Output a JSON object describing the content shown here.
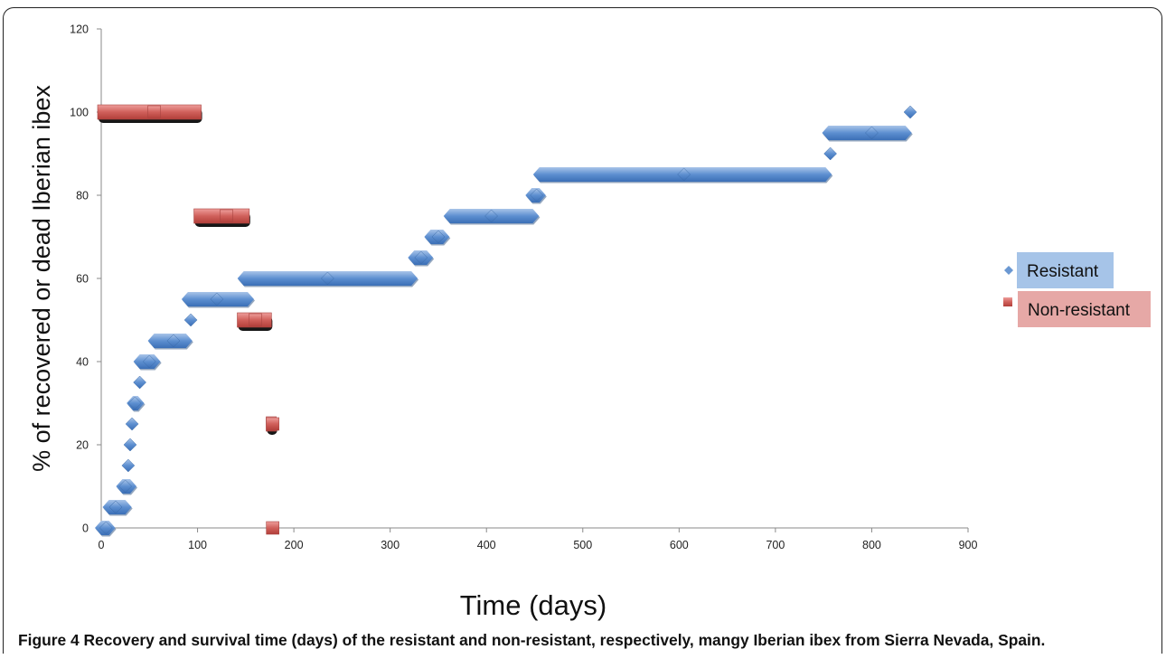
{
  "chart_data": {
    "type": "scatter",
    "xlabel": "Time (days)",
    "ylabel": "% of recovered or dead Iberian ibex",
    "xlim": [
      0,
      900
    ],
    "ylim": [
      0,
      120
    ],
    "x_ticks": [
      "0",
      "100",
      "200",
      "300",
      "400",
      "500",
      "600",
      "700",
      "800",
      "900"
    ],
    "y_ticks": [
      "0",
      "20",
      "40",
      "60",
      "80",
      "100",
      "120"
    ],
    "grid": false,
    "legend_position": "right",
    "series": [
      {
        "name": "Resistant",
        "color": "#4f81bd",
        "marker": "diamond",
        "points": [
          [
            5,
            0
          ],
          [
            15,
            5
          ],
          [
            25,
            10
          ],
          [
            28,
            15
          ],
          [
            30,
            20
          ],
          [
            32,
            25
          ],
          [
            35,
            30
          ],
          [
            40,
            35
          ],
          [
            50,
            40
          ],
          [
            75,
            45
          ],
          [
            93,
            50
          ],
          [
            120,
            55
          ],
          [
            235,
            60
          ],
          [
            332,
            65
          ],
          [
            350,
            70
          ],
          [
            405,
            75
          ],
          [
            452,
            80
          ],
          [
            605,
            85
          ],
          [
            757,
            90
          ],
          [
            800,
            95
          ],
          [
            840,
            100
          ]
        ],
        "segments": [
          [
            0,
            8,
            0
          ],
          [
            8,
            25,
            5
          ],
          [
            22,
            30,
            10
          ],
          [
            33,
            38,
            30
          ],
          [
            40,
            55,
            40
          ],
          [
            55,
            88,
            45
          ],
          [
            90,
            152,
            55
          ],
          [
            148,
            322,
            60
          ],
          [
            325,
            338,
            65
          ],
          [
            342,
            355,
            70
          ],
          [
            362,
            448,
            75
          ],
          [
            447,
            455,
            80
          ],
          [
            455,
            752,
            85
          ],
          [
            755,
            835,
            95
          ]
        ]
      },
      {
        "name": "Non-resistant",
        "color": "#c0504d",
        "marker": "square",
        "points": [
          [
            55,
            100
          ],
          [
            130,
            75
          ],
          [
            160,
            50
          ],
          [
            178,
            25
          ],
          [
            178,
            0
          ]
        ],
        "segments": [
          [
            0,
            100,
            100
          ],
          [
            100,
            150,
            75
          ],
          [
            145,
            173,
            50
          ],
          [
            175,
            178,
            25
          ]
        ]
      }
    ]
  },
  "caption": {
    "label": "Figure 4",
    "text": "Recovery and survival time (days) of the resistant and non-resistant, respectively, mangy Iberian ibex from Sierra Nevada, Spain."
  }
}
